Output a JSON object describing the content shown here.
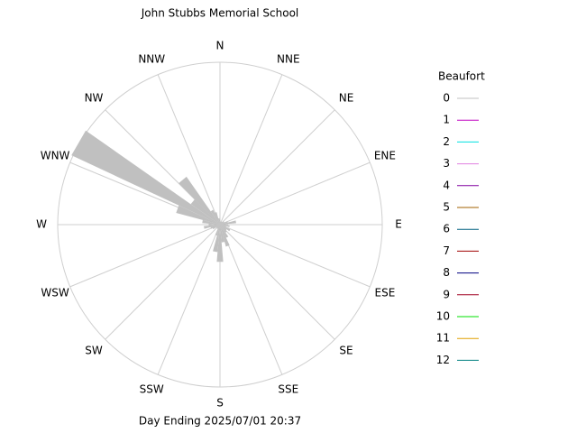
{
  "chart_data": {
    "type": "windrose",
    "title": "John Stubbs Memorial School",
    "footer": "Day Ending 2025/07/01 20:37",
    "directions": [
      "N",
      "NNE",
      "NE",
      "ENE",
      "E",
      "ESE",
      "SE",
      "SSE",
      "S",
      "SSW",
      "SW",
      "WSW",
      "W",
      "WNW",
      "NW",
      "NNW"
    ],
    "x": [
      0,
      10,
      20,
      30,
      40,
      50,
      60,
      70,
      80,
      90,
      100,
      110,
      120,
      130,
      140,
      150,
      160,
      170,
      180,
      190,
      200,
      210,
      220,
      230,
      240,
      250,
      260,
      270,
      280,
      290,
      300,
      310,
      320,
      330,
      340,
      350
    ],
    "values": [
      3,
      2,
      2,
      2,
      2,
      3,
      3,
      5,
      10,
      5,
      6,
      4,
      7,
      5,
      6,
      9,
      14,
      11,
      23,
      17,
      7,
      3,
      3,
      3,
      5,
      6,
      10,
      7,
      11,
      28,
      101,
      22,
      36,
      10,
      8,
      4
    ],
    "rlim": [
      0,
      100
    ],
    "legend_title": "Beaufort",
    "legend": [
      {
        "label": "0",
        "color": "#c0c0c0"
      },
      {
        "label": "1",
        "color": "#c000c0"
      },
      {
        "label": "2",
        "color": "#00e0e0"
      },
      {
        "label": "3",
        "color": "#e080e0"
      },
      {
        "label": "4",
        "color": "#8000a0"
      },
      {
        "label": "5",
        "color": "#a06000"
      },
      {
        "label": "6",
        "color": "#006080"
      },
      {
        "label": "7",
        "color": "#a00000"
      },
      {
        "label": "8",
        "color": "#000080"
      },
      {
        "label": "9",
        "color": "#a00020"
      },
      {
        "label": "10",
        "color": "#00e000"
      },
      {
        "label": "11",
        "color": "#e0a000"
      },
      {
        "label": "12",
        "color": "#008080"
      }
    ]
  }
}
